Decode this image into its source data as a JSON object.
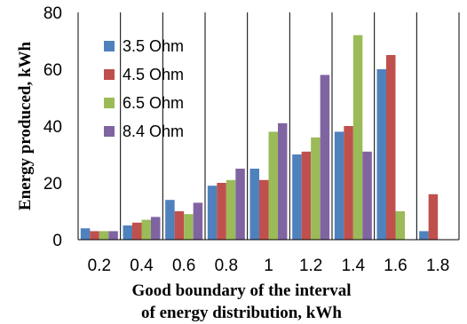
{
  "chart_data": {
    "type": "bar",
    "categories": [
      "0.2",
      "0.4",
      "0.6",
      "0.8",
      "1",
      "1.2",
      "1.4",
      "1.6",
      "1.8"
    ],
    "series": [
      {
        "name": "3.5 Ohm",
        "color": "#4f81bd",
        "values": [
          4,
          5,
          14,
          19,
          25,
          30,
          38,
          60,
          3
        ]
      },
      {
        "name": "4.5 Ohm",
        "color": "#c0504d",
        "values": [
          3,
          6,
          10,
          20,
          21,
          31,
          40,
          65,
          16
        ]
      },
      {
        "name": "6.5 Ohm",
        "color": "#9bbb59",
        "values": [
          3,
          7,
          9,
          21,
          38,
          36,
          72,
          10,
          0
        ]
      },
      {
        "name": "8.4 Ohm",
        "color": "#8064a2",
        "values": [
          3,
          8,
          13,
          25,
          41,
          58,
          31,
          0,
          0
        ]
      }
    ],
    "ylabel": "Energy produced, kWh",
    "xlabel_lines": [
      "Good boundary of the interval",
      "of energy distribution, kWh"
    ],
    "ylim": [
      0,
      80
    ],
    "yticks": [
      0,
      20,
      40,
      60,
      80
    ],
    "grid": "vertical",
    "legend_position": "top-left"
  }
}
